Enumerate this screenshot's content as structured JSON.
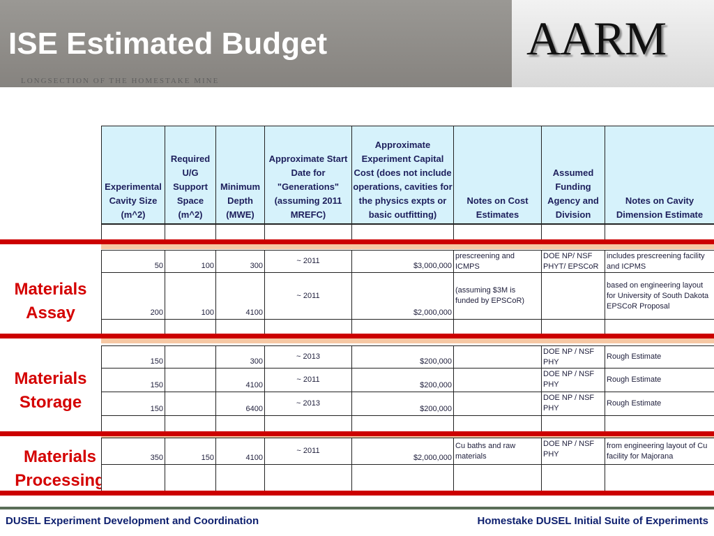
{
  "header": {
    "title": "ISE Estimated Budget",
    "background_caption": "LONGSECTION OF THE HOMESTAKE MINE",
    "logo": "AARM"
  },
  "table": {
    "columns": [
      "Experimental Cavity Size (m^2)",
      "Required U/G Support Space (m^2)",
      "Minimum Depth (MWE)",
      "Approximate Start Date for \"Generations\" (assuming 2011 MREFC)",
      "Approximate Experiment Capital Cost (does not include operations, cavities for the physics expts or basic outfitting)",
      "Notes on Cost Estimates",
      "Assumed Funding Agency and Division",
      "Notes on Cavity Dimension Estimate"
    ],
    "groups": [
      {
        "label": "Materials Assay",
        "rows": [
          [
            50,
            100,
            300,
            "~ 2011",
            "$3,000,000",
            "prescreening and ICMPS",
            "DOE NP/ NSF PHYT/ EPSCoR",
            "includes prescreening facility and ICPMS"
          ],
          [
            200,
            100,
            4100,
            "~ 2011",
            "$2,000,000",
            "(assuming $3M is funded by EPSCoR)",
            null,
            "based on engineering layout for University of South Dakota EPSCoR Proposal"
          ]
        ]
      },
      {
        "label": "Materials Storage",
        "rows": [
          [
            150,
            null,
            300,
            "~ 2013",
            "$200,000",
            null,
            "DOE NP / NSF PHY",
            "Rough Estimate"
          ],
          [
            150,
            null,
            4100,
            "~ 2011",
            "$200,000",
            null,
            "DOE NP / NSF PHY",
            "Rough Estimate"
          ],
          [
            150,
            null,
            6400,
            "~ 2013",
            "$200,000",
            null,
            "DOE NP / NSF PHY",
            "Rough Estimate"
          ]
        ]
      },
      {
        "label": "Materials Processing",
        "rows": [
          [
            350,
            150,
            4100,
            "~ 2011",
            "$2,000,000",
            "Cu baths and raw materials",
            "DOE NP / NSF PHY",
            "from engineering layout of Cu facility for Majorana"
          ]
        ]
      }
    ]
  },
  "footer": {
    "left": "DUSEL Experiment Development and Coordination",
    "right": "Homestake DUSEL Initial Suite of Experiments"
  }
}
